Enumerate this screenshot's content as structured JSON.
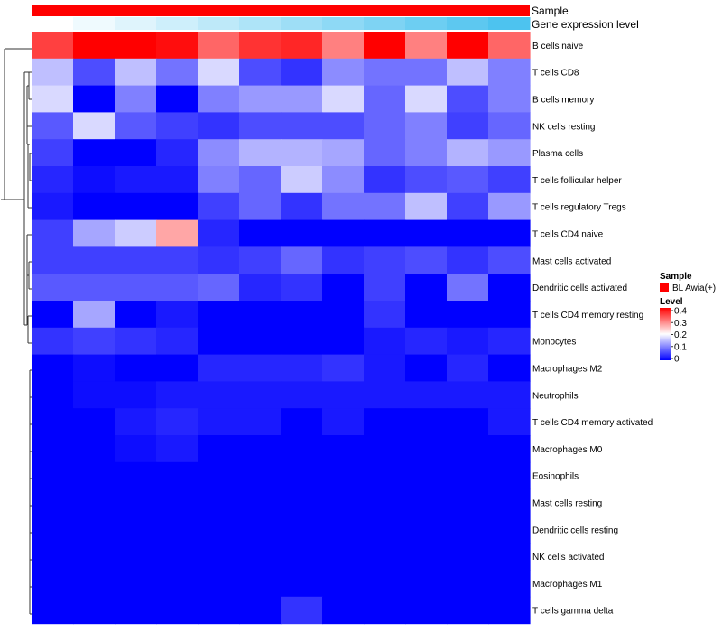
{
  "chart_data": {
    "type": "heatmap",
    "title": "",
    "annotation_tracks": [
      "Sample",
      "Gene expression level"
    ],
    "sample_group": "BL Awia(+)",
    "sample_color": "#ff0000",
    "expression_gradient": [
      "#ffffff",
      "#4dc3ef"
    ],
    "rows": [
      "B cells naive",
      "T cells CD8",
      "B cells memory",
      "NK cells resting",
      "Plasma cells",
      "T cells follicular helper",
      "T cells regulatory  Tregs",
      "T cells CD4 naive",
      "Mast cells activated",
      "Dendritic cells activated",
      "T cells CD4 memory resting",
      "Monocytes",
      "Macrophages M2",
      "Neutrophils",
      "T cells CD4 memory activated",
      "Macrophages M0",
      "Eosinophils",
      "Mast cells resting",
      "Dendritic cells resting",
      "NK cells activated",
      "Macrophages M1",
      "T cells gamma delta"
    ],
    "n_columns": 12,
    "values": [
      [
        0.35,
        0.42,
        0.42,
        0.39,
        0.32,
        0.36,
        0.37,
        0.3,
        0.42,
        0.3,
        0.4,
        0.32
      ],
      [
        0.15,
        0.06,
        0.15,
        0.09,
        0.17,
        0.06,
        0.04,
        0.11,
        0.09,
        0.09,
        0.15,
        0.1
      ],
      [
        0.17,
        0.0,
        0.1,
        0.0,
        0.1,
        0.12,
        0.12,
        0.17,
        0.08,
        0.17,
        0.06,
        0.1
      ],
      [
        0.07,
        0.17,
        0.07,
        0.05,
        0.04,
        0.06,
        0.06,
        0.06,
        0.08,
        0.1,
        0.05,
        0.08
      ],
      [
        0.05,
        0.0,
        0.0,
        0.03,
        0.11,
        0.14,
        0.14,
        0.13,
        0.08,
        0.1,
        0.14,
        0.12
      ],
      [
        0.03,
        0.01,
        0.02,
        0.02,
        0.1,
        0.08,
        0.16,
        0.11,
        0.04,
        0.06,
        0.07,
        0.05
      ],
      [
        0.02,
        0.0,
        0.0,
        0.0,
        0.05,
        0.08,
        0.04,
        0.09,
        0.09,
        0.15,
        0.05,
        0.12
      ],
      [
        0.05,
        0.13,
        0.16,
        0.27,
        0.03,
        0.0,
        0.0,
        0.0,
        0.0,
        0.0,
        0.0,
        0.0
      ],
      [
        0.05,
        0.05,
        0.05,
        0.05,
        0.04,
        0.05,
        0.08,
        0.04,
        0.05,
        0.06,
        0.04,
        0.06
      ],
      [
        0.07,
        0.07,
        0.07,
        0.07,
        0.08,
        0.03,
        0.04,
        0.0,
        0.05,
        0.0,
        0.09,
        0.0
      ],
      [
        0.0,
        0.13,
        0.0,
        0.02,
        0.0,
        0.0,
        0.0,
        0.0,
        0.04,
        0.0,
        0.0,
        0.0
      ],
      [
        0.04,
        0.05,
        0.04,
        0.03,
        0.0,
        0.0,
        0.0,
        0.0,
        0.02,
        0.03,
        0.02,
        0.03
      ],
      [
        0.0,
        0.01,
        0.0,
        0.0,
        0.03,
        0.03,
        0.03,
        0.04,
        0.02,
        0.0,
        0.03,
        0.0
      ],
      [
        0.0,
        0.01,
        0.01,
        0.02,
        0.02,
        0.02,
        0.02,
        0.02,
        0.02,
        0.02,
        0.02,
        0.02
      ],
      [
        0.0,
        0.0,
        0.02,
        0.03,
        0.02,
        0.02,
        0.0,
        0.02,
        0.0,
        0.0,
        0.0,
        0.02
      ],
      [
        0.0,
        0.0,
        0.01,
        0.02,
        0.0,
        0.0,
        0.0,
        0.0,
        0.0,
        0.0,
        0.0,
        0.0
      ],
      [
        0.0,
        0.0,
        0.0,
        0.0,
        0.0,
        0.0,
        0.0,
        0.0,
        0.0,
        0.0,
        0.0,
        0.0
      ],
      [
        0.0,
        0.0,
        0.0,
        0.0,
        0.0,
        0.0,
        0.0,
        0.0,
        0.0,
        0.0,
        0.0,
        0.0
      ],
      [
        0.0,
        0.0,
        0.0,
        0.0,
        0.0,
        0.0,
        0.0,
        0.0,
        0.0,
        0.0,
        0.0,
        0.0
      ],
      [
        0.0,
        0.0,
        0.0,
        0.0,
        0.0,
        0.0,
        0.0,
        0.0,
        0.0,
        0.0,
        0.0,
        0.0
      ],
      [
        0.0,
        0.0,
        0.0,
        0.0,
        0.0,
        0.0,
        0.0,
        0.0,
        0.0,
        0.0,
        0.0,
        0.0
      ],
      [
        0.0,
        0.0,
        0.0,
        0.0,
        0.0,
        0.0,
        0.04,
        0.0,
        0.0,
        0.0,
        0.0,
        0.0
      ]
    ],
    "color_scale": {
      "domain": [
        0,
        0.2,
        0.4
      ],
      "colors": [
        "#0000ff",
        "#ffffff",
        "#ff0000"
      ]
    },
    "legend": {
      "position": "right",
      "sample_title": "Sample",
      "sample_entry": "BL Awia(+)",
      "level_title": "Level",
      "level_ticks": [
        "0.4",
        "0.3",
        "0.2",
        "0.1",
        "0"
      ]
    },
    "row_dendrogram": true
  }
}
